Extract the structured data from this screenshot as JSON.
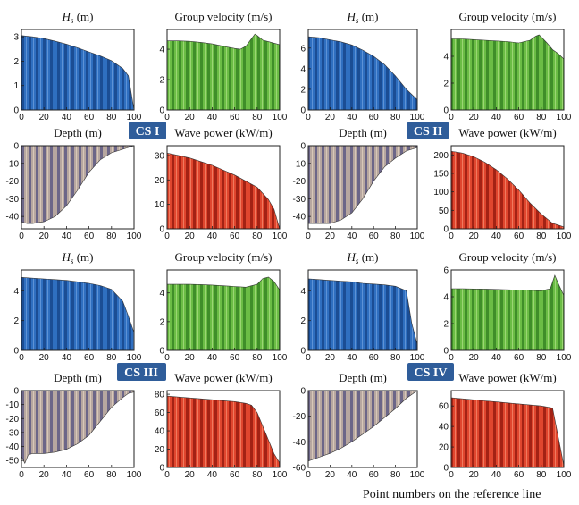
{
  "figure": {
    "footer": "Point numbers on the reference line"
  },
  "colors": {
    "hs": "#2f6fc0",
    "group_velocity": "#6bbd45",
    "depth": "#a89a9c",
    "wave_power": "#e0462e",
    "badge": "#2f5d9a"
  },
  "sections": [
    {
      "label": "CS I"
    },
    {
      "label": "CS II"
    },
    {
      "label": "CS III"
    },
    {
      "label": "CS IV"
    }
  ],
  "chart_data": [
    {
      "type": "area",
      "section": "CS I",
      "title_main": "H",
      "title_sub": "s",
      "title_rest": " (m)",
      "x": [
        0,
        10,
        20,
        30,
        40,
        50,
        60,
        70,
        80,
        90,
        95,
        100
      ],
      "y": [
        3.05,
        3.0,
        2.93,
        2.82,
        2.7,
        2.55,
        2.38,
        2.22,
        2.02,
        1.7,
        1.4,
        0.0
      ],
      "xlim": [
        0,
        100
      ],
      "ylim": [
        0,
        3.3
      ],
      "xticks": [
        0,
        20,
        40,
        60,
        80,
        100
      ],
      "yticks": [
        0,
        1,
        2,
        3
      ]
    },
    {
      "type": "area",
      "section": "CS I",
      "title": "Group velocity (m/s)",
      "x": [
        0,
        10,
        20,
        30,
        40,
        50,
        60,
        65,
        70,
        75,
        78,
        80,
        85,
        90,
        95,
        100
      ],
      "y": [
        4.55,
        4.55,
        4.52,
        4.45,
        4.35,
        4.2,
        4.05,
        4.0,
        4.2,
        4.7,
        5.0,
        4.9,
        4.6,
        4.5,
        4.4,
        4.3
      ],
      "xlim": [
        0,
        100
      ],
      "ylim": [
        0,
        5.3
      ],
      "xticks": [
        0,
        20,
        40,
        60,
        80,
        100
      ],
      "yticks": [
        0,
        2,
        4
      ]
    },
    {
      "type": "area",
      "section": "CS II",
      "title_main": "H",
      "title_sub": "s",
      "title_rest": " (m)",
      "x": [
        0,
        10,
        20,
        30,
        40,
        50,
        60,
        70,
        80,
        90,
        100
      ],
      "y": [
        7.1,
        7.0,
        6.8,
        6.6,
        6.3,
        5.8,
        5.2,
        4.4,
        3.3,
        2.0,
        1.0
      ],
      "xlim": [
        0,
        100
      ],
      "ylim": [
        0,
        7.8
      ],
      "xticks": [
        0,
        20,
        40,
        60,
        80,
        100
      ],
      "yticks": [
        0,
        2,
        4,
        6
      ]
    },
    {
      "type": "area",
      "section": "CS II",
      "title": "Group velocity (m/s)",
      "x": [
        0,
        10,
        20,
        30,
        40,
        50,
        60,
        70,
        75,
        78,
        80,
        85,
        90,
        95,
        100
      ],
      "y": [
        5.3,
        5.3,
        5.25,
        5.2,
        5.15,
        5.1,
        5.0,
        5.2,
        5.5,
        5.6,
        5.45,
        5.0,
        4.5,
        4.2,
        3.8
      ],
      "xlim": [
        0,
        100
      ],
      "ylim": [
        0,
        6.0
      ],
      "xticks": [
        0,
        20,
        40,
        60,
        80,
        100
      ],
      "yticks": [
        0,
        2,
        4
      ]
    },
    {
      "type": "area",
      "section": "CS I",
      "title": "Depth (m)",
      "x": [
        0,
        5,
        10,
        20,
        30,
        40,
        50,
        60,
        70,
        80,
        90,
        95,
        100
      ],
      "y": [
        -43,
        -44,
        -44,
        -43,
        -40,
        -34,
        -25,
        -15,
        -8,
        -4,
        -2,
        -1,
        0
      ],
      "xlim": [
        0,
        100
      ],
      "ylim": [
        -47,
        0
      ],
      "xticks": [
        0,
        20,
        40,
        60,
        80,
        100
      ],
      "yticks": [
        0,
        -10,
        -20,
        -30,
        -40
      ]
    },
    {
      "type": "area",
      "section": "CS I",
      "title": "Wave power (kW/m)",
      "x": [
        0,
        10,
        20,
        30,
        40,
        50,
        60,
        70,
        80,
        90,
        95,
        100
      ],
      "y": [
        31,
        30,
        29,
        27.5,
        26,
        24,
        22,
        19.5,
        17,
        12,
        8,
        0
      ],
      "xlim": [
        0,
        100
      ],
      "ylim": [
        0,
        34
      ],
      "xticks": [
        0,
        20,
        40,
        60,
        80,
        100
      ],
      "yticks": [
        0,
        10,
        20,
        30
      ]
    },
    {
      "type": "area",
      "section": "CS II",
      "title": "Depth (m)",
      "x": [
        0,
        10,
        20,
        30,
        40,
        50,
        60,
        70,
        80,
        90,
        100
      ],
      "y": [
        -44,
        -44,
        -44,
        -42,
        -38,
        -30,
        -20,
        -12,
        -7,
        -3,
        -1
      ],
      "xlim": [
        0,
        100
      ],
      "ylim": [
        -47,
        0
      ],
      "xticks": [
        0,
        20,
        40,
        60,
        80,
        100
      ],
      "yticks": [
        0,
        -10,
        -20,
        -30,
        -40
      ]
    },
    {
      "type": "area",
      "section": "CS II",
      "title": "Wave power (kW/m)",
      "x": [
        0,
        10,
        20,
        30,
        40,
        50,
        60,
        70,
        80,
        90,
        100
      ],
      "y": [
        210,
        205,
        195,
        180,
        160,
        135,
        105,
        70,
        40,
        15,
        5
      ],
      "xlim": [
        0,
        100
      ],
      "ylim": [
        0,
        225
      ],
      "xticks": [
        0,
        20,
        40,
        60,
        80,
        100
      ],
      "yticks": [
        0,
        50,
        100,
        150,
        200
      ]
    },
    {
      "type": "area",
      "section": "CS III",
      "title_main": "H",
      "title_sub": "s",
      "title_rest": " (m)",
      "x": [
        0,
        10,
        20,
        30,
        40,
        50,
        60,
        70,
        80,
        90,
        95,
        100
      ],
      "y": [
        4.9,
        4.85,
        4.8,
        4.75,
        4.7,
        4.6,
        4.5,
        4.35,
        4.1,
        3.3,
        2.3,
        1.2
      ],
      "xlim": [
        0,
        100
      ],
      "ylim": [
        0,
        5.4
      ],
      "xticks": [
        0,
        20,
        40,
        60,
        80,
        100
      ],
      "yticks": [
        0,
        2,
        4
      ]
    },
    {
      "type": "area",
      "section": "CS III",
      "title": "Group velocity (m/s)",
      "x": [
        0,
        10,
        20,
        30,
        40,
        50,
        60,
        70,
        80,
        85,
        90,
        95,
        100
      ],
      "y": [
        4.6,
        4.6,
        4.6,
        4.58,
        4.55,
        4.5,
        4.45,
        4.4,
        4.6,
        5.0,
        5.1,
        4.8,
        4.2
      ],
      "xlim": [
        0,
        100
      ],
      "ylim": [
        0,
        5.6
      ],
      "xticks": [
        0,
        20,
        40,
        60,
        80,
        100
      ],
      "yticks": [
        0,
        2,
        4
      ]
    },
    {
      "type": "area",
      "section": "CS IV",
      "title_main": "H",
      "title_sub": "s",
      "title_rest": " (m)",
      "x": [
        0,
        10,
        20,
        30,
        40,
        50,
        60,
        70,
        80,
        90,
        95,
        100
      ],
      "y": [
        4.8,
        4.75,
        4.7,
        4.65,
        4.6,
        4.5,
        4.45,
        4.4,
        4.3,
        4.0,
        1.8,
        0.4
      ],
      "xlim": [
        0,
        100
      ],
      "ylim": [
        0,
        5.4
      ],
      "xticks": [
        0,
        20,
        40,
        60,
        80,
        100
      ],
      "yticks": [
        0,
        2,
        4
      ]
    },
    {
      "type": "area",
      "section": "CS IV",
      "title": "Group velocity (m/s)",
      "x": [
        0,
        10,
        20,
        30,
        40,
        50,
        60,
        70,
        80,
        88,
        92,
        95,
        100
      ],
      "y": [
        4.6,
        4.6,
        4.58,
        4.57,
        4.55,
        4.52,
        4.5,
        4.48,
        4.45,
        4.6,
        5.6,
        5.0,
        4.1
      ],
      "xlim": [
        0,
        100
      ],
      "ylim": [
        0,
        6
      ],
      "xticks": [
        0,
        20,
        40,
        60,
        80,
        100
      ],
      "yticks": [
        0,
        2,
        4,
        6
      ]
    },
    {
      "type": "area",
      "section": "CS III",
      "title": "Depth (m)",
      "x": [
        0,
        3,
        6,
        10,
        20,
        30,
        40,
        50,
        60,
        70,
        80,
        90,
        95,
        100
      ],
      "y": [
        -47,
        -52,
        -46,
        -45,
        -45,
        -44,
        -42,
        -38,
        -32,
        -22,
        -12,
        -5,
        -2,
        -1
      ],
      "xlim": [
        0,
        100
      ],
      "ylim": [
        -55,
        0
      ],
      "xticks": [
        0,
        20,
        40,
        60,
        80,
        100
      ],
      "yticks": [
        0,
        -10,
        -20,
        -30,
        -40,
        -50
      ]
    },
    {
      "type": "area",
      "section": "CS III",
      "title": "Wave power (kW/m)",
      "x": [
        0,
        10,
        20,
        30,
        40,
        50,
        60,
        70,
        75,
        80,
        85,
        90,
        95,
        100
      ],
      "y": [
        78,
        77,
        76,
        75,
        74,
        73,
        72,
        70,
        68,
        60,
        45,
        30,
        15,
        5
      ],
      "xlim": [
        0,
        100
      ],
      "ylim": [
        0,
        84
      ],
      "xticks": [
        0,
        20,
        40,
        60,
        80,
        100
      ],
      "yticks": [
        0,
        20,
        40,
        60,
        80
      ]
    },
    {
      "type": "area",
      "section": "CS IV",
      "title": "Depth (m)",
      "x": [
        0,
        10,
        20,
        30,
        40,
        50,
        60,
        70,
        80,
        90,
        100
      ],
      "y": [
        -55,
        -52,
        -49,
        -45,
        -40,
        -34,
        -28,
        -21,
        -14,
        -6,
        0
      ],
      "xlim": [
        0,
        100
      ],
      "ylim": [
        -60,
        0
      ],
      "xticks": [
        0,
        20,
        40,
        60,
        80,
        100
      ],
      "yticks": [
        0,
        -20,
        -40,
        -60
      ]
    },
    {
      "type": "area",
      "section": "CS IV",
      "title": "Wave power (kW/m)",
      "x": [
        0,
        10,
        20,
        30,
        40,
        50,
        60,
        70,
        80,
        90,
        95,
        100
      ],
      "y": [
        68,
        67,
        66,
        65,
        64,
        63,
        62,
        61,
        60,
        58,
        30,
        2
      ],
      "xlim": [
        0,
        100
      ],
      "ylim": [
        0,
        75
      ],
      "xticks": [
        0,
        20,
        40,
        60,
        80,
        100
      ],
      "yticks": [
        0,
        20,
        40,
        60
      ]
    }
  ]
}
